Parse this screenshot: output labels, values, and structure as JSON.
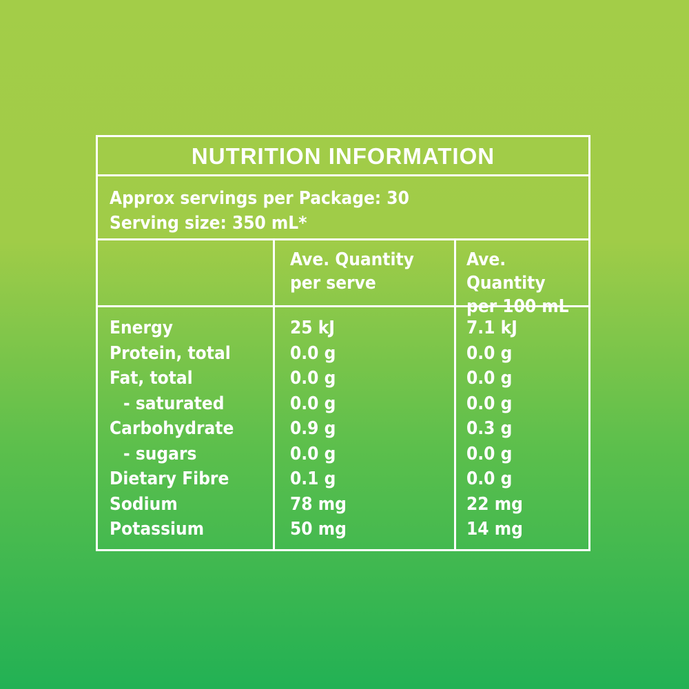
{
  "title": "NUTRITION INFORMATION",
  "servings": [
    "Approx servings per Package: 30",
    "Serving size: 350 mL*"
  ],
  "columns": [
    [
      "Ave. Quantity",
      "per serve"
    ],
    [
      "Ave. Quantity",
      "per 100 mL"
    ]
  ],
  "rows": [
    [
      "Energy",
      "25 kJ",
      "7.1 kJ"
    ],
    [
      "Protein, total",
      "0.0 g",
      "0.0 g"
    ],
    [
      "Fat, total",
      "0.0 g",
      "0.0 g"
    ],
    [
      "- saturated",
      "0.0 g",
      "0.0 g"
    ],
    [
      "Carbohydrate",
      "0.9 g",
      "0.3 g"
    ],
    [
      "- sugars",
      "0.0 g",
      "0.0 g"
    ],
    [
      "Dietary Fibre",
      "0.1 g",
      "0.0 g"
    ],
    [
      "Sodium",
      "78 mg",
      "22 mg"
    ],
    [
      "Potassium",
      "50 mg",
      "14 mg"
    ]
  ]
}
